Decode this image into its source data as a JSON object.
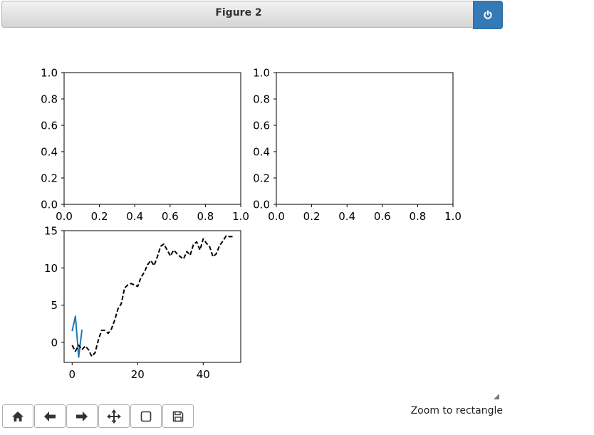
{
  "window": {
    "title": "Figure 2"
  },
  "toolbar": {
    "buttons": [
      {
        "name": "home-button",
        "icon": "home-icon"
      },
      {
        "name": "back-button",
        "icon": "arrow-left-icon"
      },
      {
        "name": "forward-button",
        "icon": "arrow-right-icon"
      },
      {
        "name": "pan-button",
        "icon": "move-icon"
      },
      {
        "name": "zoom-button",
        "icon": "square-icon"
      },
      {
        "name": "save-button",
        "icon": "floppy-disk-icon"
      }
    ]
  },
  "status": {
    "message": "Zoom to rectangle"
  },
  "chart_data": [
    {
      "type": "line",
      "xlim": [
        0,
        1
      ],
      "ylim": [
        0,
        1
      ],
      "xticks": [
        "0.0",
        "0.2",
        "0.4",
        "0.6",
        "0.8",
        "1.0"
      ],
      "yticks": [
        "0.0",
        "0.2",
        "0.4",
        "0.6",
        "0.8",
        "1.0"
      ],
      "series": []
    },
    {
      "type": "line",
      "xlim": [
        0,
        1
      ],
      "ylim": [
        0,
        1
      ],
      "xticks": [
        "0.0",
        "0.2",
        "0.4",
        "0.6",
        "0.8",
        "1.0"
      ],
      "yticks": [
        "0.0",
        "0.2",
        "0.4",
        "0.6",
        "0.8",
        "1.0"
      ],
      "series": []
    },
    {
      "type": "line",
      "xlim": [
        -2.45,
        51.45
      ],
      "ylim": [
        -2.7,
        15.0
      ],
      "xticks": [
        0,
        20,
        40
      ],
      "yticks": [
        0,
        5,
        10,
        15
      ],
      "series": [
        {
          "color": "#1f77b4",
          "style": "solid",
          "x": [
            0,
            1,
            2,
            3
          ],
          "y": [
            1.5,
            3.5,
            -2.0,
            1.7
          ]
        },
        {
          "color": "#000000",
          "style": "dashed",
          "x": [
            0,
            1,
            2,
            3,
            4,
            5,
            6,
            7,
            8,
            9,
            10,
            11,
            12,
            13,
            14,
            15,
            16,
            17,
            18,
            19,
            20,
            21,
            22,
            23,
            24,
            25,
            26,
            27,
            28,
            29,
            30,
            31,
            32,
            33,
            34,
            35,
            36,
            37,
            38,
            39,
            40,
            41,
            42,
            43,
            44,
            45,
            46,
            47,
            48,
            49
          ],
          "y": [
            -0.4,
            -1.2,
            -0.4,
            -1.0,
            -0.5,
            -1.0,
            -1.9,
            -1.4,
            0.3,
            1.6,
            1.6,
            1.2,
            1.8,
            3.0,
            4.5,
            5.2,
            7.3,
            7.7,
            7.9,
            7.7,
            7.5,
            8.7,
            9.4,
            10.4,
            11.0,
            10.3,
            11.5,
            12.9,
            13.2,
            12.4,
            11.6,
            12.4,
            11.9,
            11.5,
            11.2,
            12.2,
            11.7,
            13.1,
            13.5,
            12.4,
            13.9,
            13.3,
            12.8,
            11.5,
            11.9,
            13.0,
            13.6,
            14.3,
            14.2,
            14.2
          ]
        }
      ]
    }
  ]
}
